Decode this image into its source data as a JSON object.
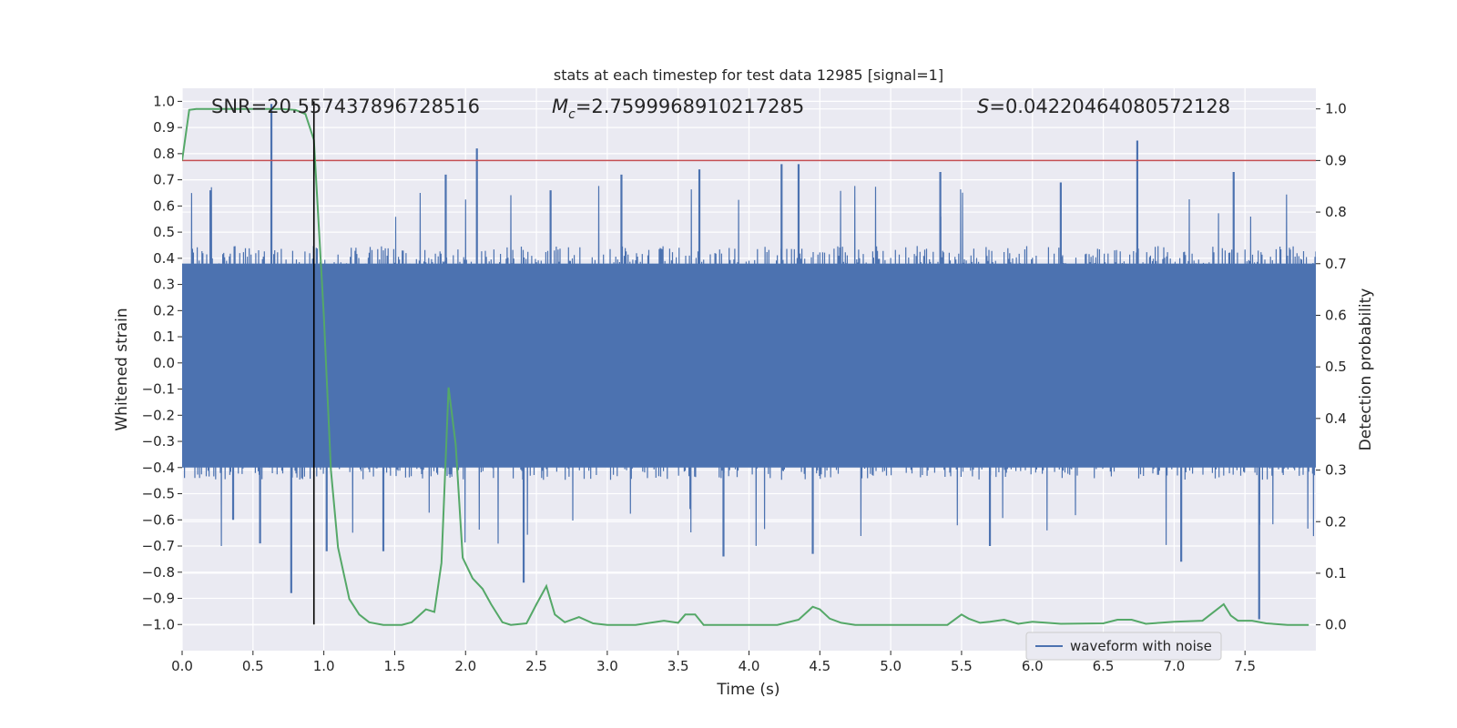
{
  "chart_data": {
    "type": "line",
    "title": "stats at each timestep for test data 12985 [signal=1]",
    "xlabel": "Time (s)",
    "ylabel_left": "Whitened strain",
    "ylabel_right": "Detection probability",
    "xlim": [
      0.0,
      8.0
    ],
    "ylim_left": [
      -1.1,
      1.05
    ],
    "ylim_right": [
      -0.05,
      1.04
    ],
    "x_ticks": [
      "0.0",
      "0.5",
      "1.0",
      "1.5",
      "2.0",
      "2.5",
      "3.0",
      "3.5",
      "4.0",
      "4.5",
      "5.0",
      "5.5",
      "6.0",
      "6.5",
      "7.0",
      "7.5"
    ],
    "x_tick_values": [
      0.0,
      0.5,
      1.0,
      1.5,
      2.0,
      2.5,
      3.0,
      3.5,
      4.0,
      4.5,
      5.0,
      5.5,
      6.0,
      6.5,
      7.0,
      7.5
    ],
    "y_ticks_left": [
      "1.0",
      "0.9",
      "0.8",
      "0.7",
      "0.6",
      "0.5",
      "0.4",
      "0.3",
      "0.2",
      "0.1",
      "0.0",
      "−0.1",
      "−0.2",
      "−0.3",
      "−0.4",
      "−0.5",
      "−0.6",
      "−0.7",
      "−0.8",
      "−0.9",
      "−1.0"
    ],
    "y_tick_values_left": [
      1.0,
      0.9,
      0.8,
      0.7,
      0.6,
      0.5,
      0.4,
      0.3,
      0.2,
      0.1,
      0.0,
      -0.1,
      -0.2,
      -0.3,
      -0.4,
      -0.5,
      -0.6,
      -0.7,
      -0.8,
      -0.9,
      -1.0
    ],
    "y_ticks_right": [
      "1.0",
      "0.9",
      "0.8",
      "0.7",
      "0.6",
      "0.5",
      "0.4",
      "0.3",
      "0.2",
      "0.1",
      "0.0"
    ],
    "y_tick_values_right": [
      1.0,
      0.9,
      0.8,
      0.7,
      0.6,
      0.5,
      0.4,
      0.3,
      0.2,
      0.1,
      0.0
    ],
    "grid": true,
    "legend": {
      "placement": "lower-right",
      "entries": [
        "waveform with noise"
      ]
    },
    "annotations": {
      "snr": "SNR=20.557437896728516",
      "mc_symbol": "M",
      "mc_sub": "c",
      "mc_value": "=2.7599968910217285",
      "s_symbol": "S",
      "s_value": "=0.04220464080572128"
    },
    "series": [
      {
        "name": "waveform with noise",
        "kind": "noise",
        "color": "#4c72b0",
        "typical_peak": 0.45,
        "spikes": [
          {
            "x": 0.63,
            "y": 0.99
          },
          {
            "x": 0.77,
            "y": -0.88
          },
          {
            "x": 2.08,
            "y": 0.82
          },
          {
            "x": 2.41,
            "y": -0.84
          },
          {
            "x": 6.74,
            "y": 0.85
          },
          {
            "x": 7.6,
            "y": -0.98
          },
          {
            "x": 1.42,
            "y": -0.72
          },
          {
            "x": 1.02,
            "y": -0.72
          },
          {
            "x": 7.05,
            "y": -0.76
          },
          {
            "x": 4.45,
            "y": -0.73
          },
          {
            "x": 3.82,
            "y": -0.74
          },
          {
            "x": 0.55,
            "y": -0.69
          },
          {
            "x": 4.23,
            "y": 0.76
          },
          {
            "x": 4.35,
            "y": 0.76
          },
          {
            "x": 3.65,
            "y": 0.74
          },
          {
            "x": 5.35,
            "y": 0.73
          },
          {
            "x": 3.1,
            "y": 0.72
          },
          {
            "x": 1.86,
            "y": 0.72
          },
          {
            "x": 7.42,
            "y": 0.73
          },
          {
            "x": 0.2,
            "y": 0.66
          },
          {
            "x": 0.36,
            "y": -0.6
          },
          {
            "x": 2.6,
            "y": 0.66
          },
          {
            "x": 5.7,
            "y": -0.7
          },
          {
            "x": 6.2,
            "y": 0.69
          }
        ]
      },
      {
        "name": "",
        "kind": "probability",
        "color": "#55a868",
        "x": [
          0.0,
          0.05,
          0.1,
          0.2,
          0.3,
          0.4,
          0.5,
          0.6,
          0.7,
          0.8,
          0.87,
          0.93,
          1.0,
          1.05,
          1.1,
          1.18,
          1.25,
          1.32,
          1.42,
          1.55,
          1.62,
          1.72,
          1.78,
          1.83,
          1.88,
          1.93,
          1.98,
          2.05,
          2.12,
          2.18,
          2.26,
          2.32,
          2.43,
          2.5,
          2.57,
          2.63,
          2.7,
          2.8,
          2.9,
          3.0,
          3.2,
          3.4,
          3.5,
          3.55,
          3.62,
          3.68,
          3.8,
          4.0,
          4.2,
          4.35,
          4.45,
          4.5,
          4.57,
          4.65,
          4.75,
          5.0,
          5.2,
          5.4,
          5.5,
          5.55,
          5.63,
          5.7,
          5.8,
          5.9,
          6.0,
          6.2,
          6.5,
          6.6,
          6.7,
          6.8,
          6.9,
          7.0,
          7.2,
          7.35,
          7.4,
          7.45,
          7.55,
          7.65,
          7.8,
          7.95
        ],
        "y": [
          0.9,
          0.998,
          1.0,
          1.0,
          1.0,
          1.0,
          1.0,
          1.0,
          1.0,
          0.998,
          0.99,
          0.94,
          0.6,
          0.3,
          0.15,
          0.05,
          0.02,
          0.005,
          0.0,
          0.0,
          0.005,
          0.03,
          0.025,
          0.12,
          0.46,
          0.35,
          0.13,
          0.09,
          0.07,
          0.04,
          0.005,
          0.0,
          0.003,
          0.04,
          0.075,
          0.02,
          0.005,
          0.015,
          0.003,
          0.0,
          0.0,
          0.008,
          0.004,
          0.02,
          0.02,
          0.0,
          0.0,
          0.0,
          0.0,
          0.01,
          0.035,
          0.03,
          0.012,
          0.004,
          0.0,
          0.0,
          0.0,
          0.0,
          0.02,
          0.012,
          0.004,
          0.006,
          0.01,
          0.002,
          0.006,
          0.002,
          0.003,
          0.01,
          0.01,
          0.002,
          0.004,
          0.006,
          0.008,
          0.04,
          0.018,
          0.008,
          0.008,
          0.003,
          0.0,
          0.0
        ]
      }
    ],
    "threshold_right": 0.9,
    "threshold_color": "#c44e52",
    "marker_x": 0.93
  }
}
